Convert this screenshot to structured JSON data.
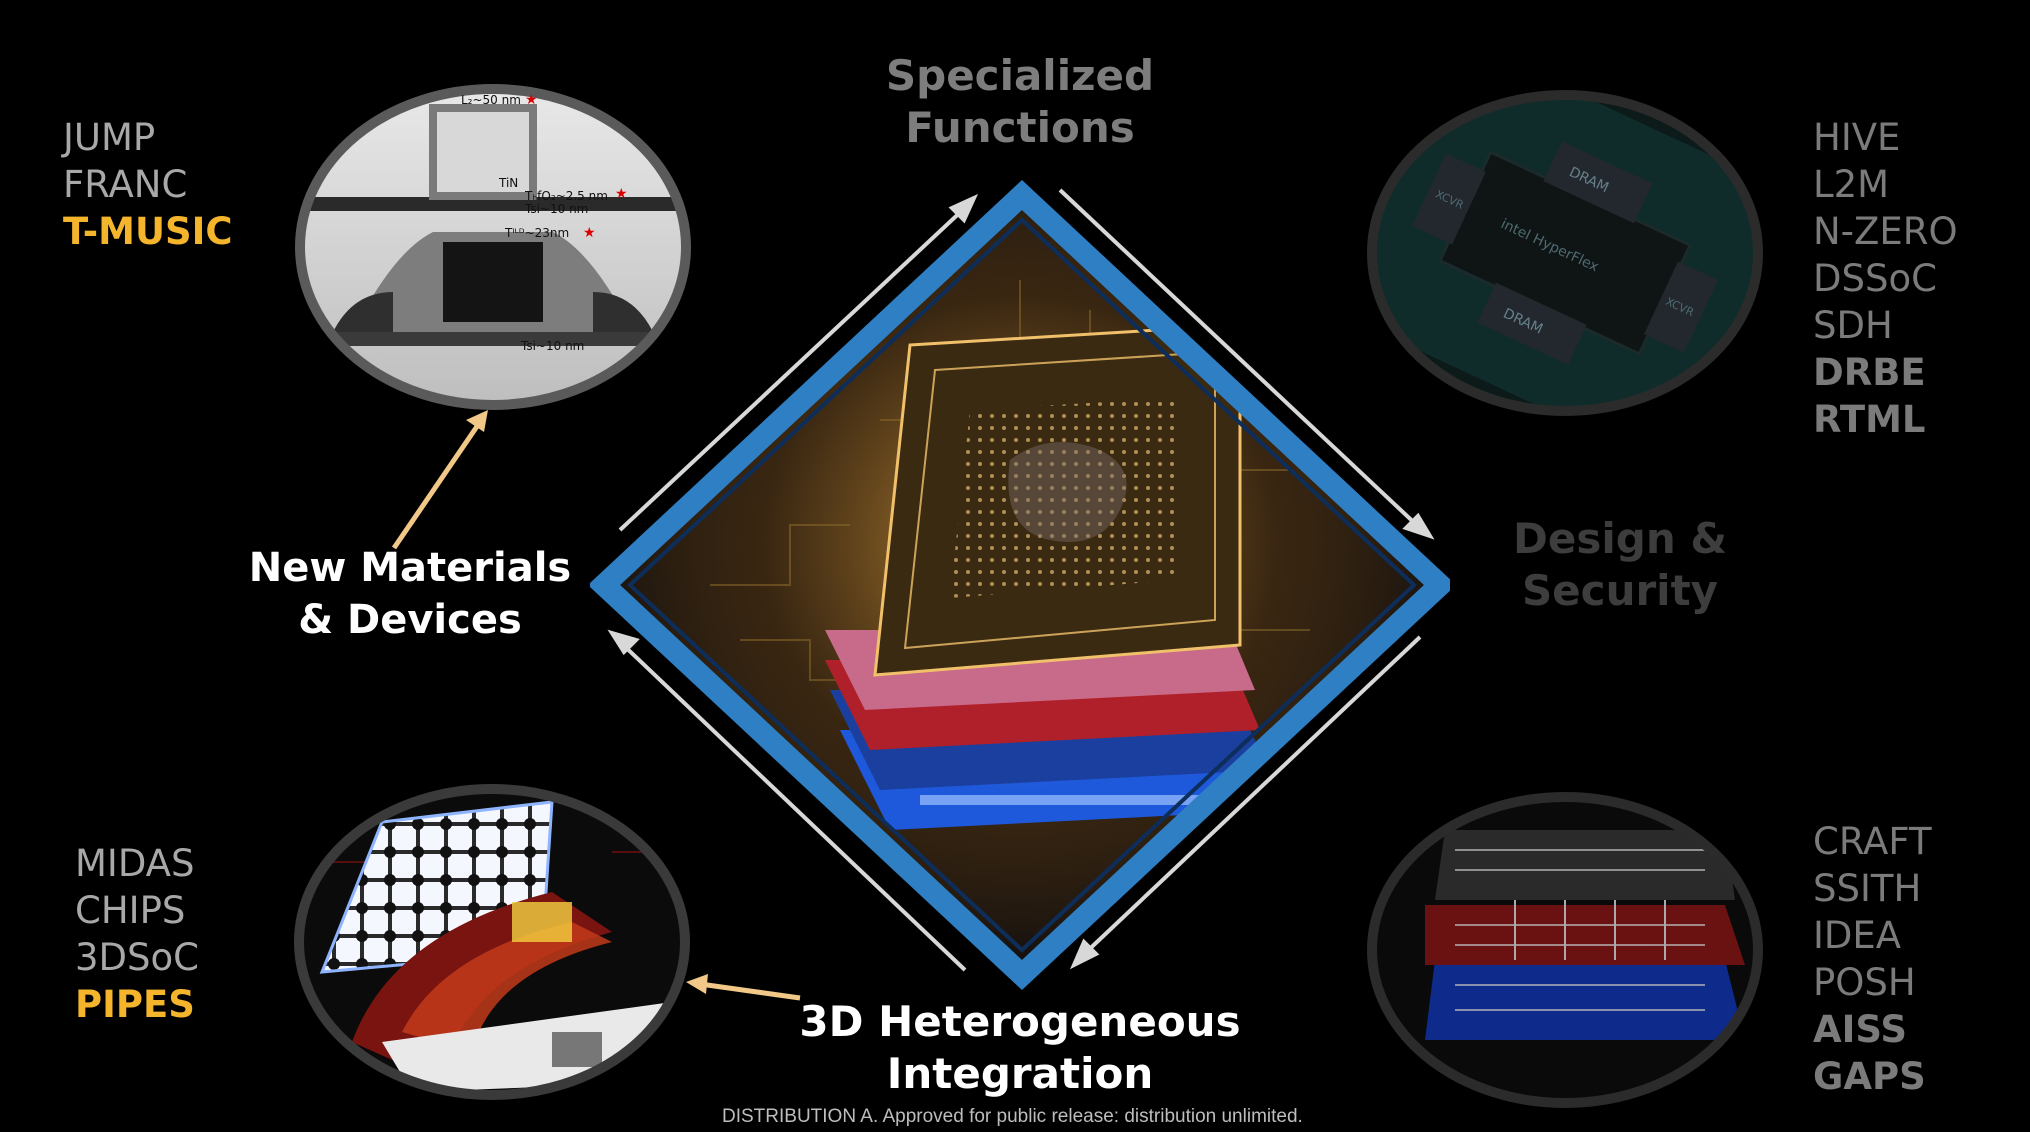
{
  "top_left_list": [
    "JUMP",
    "FRANC",
    "T-MUSIC"
  ],
  "bottom_left_list": [
    "MIDAS",
    "CHIPS",
    "3DSoC",
    "PIPES"
  ],
  "top_right_list": [
    "HIVE",
    "L2M",
    "N-ZERO",
    "DSSoC",
    "SDH",
    "DRBE",
    "RTML"
  ],
  "bottom_right_list": [
    "CRAFT",
    "SSITH",
    "IDEA",
    "POSH",
    "AISS",
    "GAPS"
  ],
  "headings": {
    "specialized_line1": "Specialized",
    "specialized_line2": "Functions",
    "design_line1": "Design &",
    "design_line2": "Security",
    "materials_line1": "New Materials",
    "materials_line2": "& Devices",
    "hetero_line1": "3D Heterogeneous",
    "hetero_line2": "Integration"
  },
  "tem_labels": {
    "lg": "L₂~50 nm",
    "tin": "TiN",
    "thfo2": "TₕfO₂~2.5 nm",
    "tsi_top": "Tsi~10 nm",
    "tild": "Tᴵᴸᴰ~23nm",
    "tsi_bottom": "Tsi~10 nm"
  },
  "chip_labels": {
    "dram_top": "DRAM",
    "dram_bottom": "DRAM",
    "brand": "intel HyperFlex",
    "xcvr_left": "XCVR",
    "xcvr_right": "XCVR"
  },
  "footer": "DISTRIBUTION A. Approved for public release: distribution unlimited.",
  "colors": {
    "accent_gold": "#f4b42c",
    "diamond_blue": "#2e7fc4",
    "text_grey": "#a8a8a8",
    "text_dim": "#7b7b7b"
  }
}
